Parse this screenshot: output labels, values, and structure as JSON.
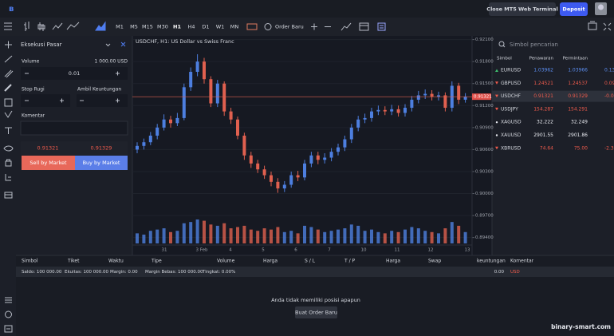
{
  "top_bar": {
    "close_button": "Close MT5 Web Terminal",
    "deposit_button": "Deposit"
  },
  "toolbar": {
    "timeframes": [
      "M1",
      "M5",
      "M15",
      "M30",
      "H1",
      "H4",
      "D1",
      "W1",
      "MN"
    ],
    "active_timeframe": "H1",
    "order_button": "Order Baru"
  },
  "order_panel": {
    "mode": "Eksekusi Pasar",
    "volume_label": "Volume",
    "volume_amount": "1 000.00 USD",
    "volume": "0.01",
    "stop_loss_label": "Stop Rugi",
    "take_profit_label": "Ambil Keuntungan",
    "comment_label": "Komentar",
    "bid": "0.91321",
    "ask": "0.91329",
    "sell_button": "Sell by Market",
    "buy_button": "Buy by Market"
  },
  "chart": {
    "title": "USDCHF, H1: US Dollar vs Swiss Franc",
    "ylim": [
      0.8932,
      0.9215
    ],
    "price_ticks": [
      {
        "value": 0.921,
        "label": "0.92100"
      },
      {
        "value": 0.918,
        "label": "0.91800"
      },
      {
        "value": 0.915,
        "label": "0.91500"
      },
      {
        "value": 0.912,
        "label": "0.91200"
      },
      {
        "value": 0.909,
        "label": "0.90900"
      },
      {
        "value": 0.906,
        "label": "0.90600"
      },
      {
        "value": 0.903,
        "label": "0.90300"
      },
      {
        "value": 0.9,
        "label": "0.90000"
      },
      {
        "value": 0.897,
        "label": "0.89700"
      },
      {
        "value": 0.894,
        "label": "0.89400"
      }
    ],
    "current_price": {
      "value": 0.91321,
      "label": "0.91321"
    },
    "x_labels": [
      "31",
      "3 Feb",
      "4",
      "5",
      "6",
      "7",
      "10",
      "11",
      "12",
      "13"
    ],
    "candles": [
      [
        0.906,
        0.907,
        0.9055,
        0.9065
      ],
      [
        0.9065,
        0.9075,
        0.906,
        0.907
      ],
      [
        0.907,
        0.9084,
        0.9066,
        0.9079
      ],
      [
        0.9079,
        0.9095,
        0.9074,
        0.909
      ],
      [
        0.909,
        0.9108,
        0.9086,
        0.9101
      ],
      [
        0.9101,
        0.9106,
        0.909,
        0.9096
      ],
      [
        0.9096,
        0.911,
        0.9092,
        0.9103
      ],
      [
        0.9103,
        0.915,
        0.91,
        0.9145
      ],
      [
        0.9145,
        0.9172,
        0.914,
        0.9166
      ],
      [
        0.9166,
        0.919,
        0.916,
        0.918
      ],
      [
        0.918,
        0.9185,
        0.915,
        0.9156
      ],
      [
        0.9156,
        0.916,
        0.9118,
        0.9123
      ],
      [
        0.9123,
        0.9155,
        0.9118,
        0.915
      ],
      [
        0.915,
        0.9153,
        0.9106,
        0.9112
      ],
      [
        0.9112,
        0.9117,
        0.9095,
        0.9101
      ],
      [
        0.9101,
        0.9105,
        0.9074,
        0.9079
      ],
      [
        0.9079,
        0.9083,
        0.9046,
        0.9052
      ],
      [
        0.9052,
        0.9057,
        0.9035,
        0.9041
      ],
      [
        0.9041,
        0.9046,
        0.9028,
        0.9033
      ],
      [
        0.9033,
        0.9038,
        0.902,
        0.9025
      ],
      [
        0.9025,
        0.903,
        0.901,
        0.9016
      ],
      [
        0.9016,
        0.9021,
        0.9001,
        0.9007
      ],
      [
        0.9007,
        0.9017,
        0.9002,
        0.9012
      ],
      [
        0.9012,
        0.903,
        0.9008,
        0.9025
      ],
      [
        0.9025,
        0.9031,
        0.9017,
        0.9022
      ],
      [
        0.9022,
        0.9046,
        0.9018,
        0.9041
      ],
      [
        0.9041,
        0.9057,
        0.9036,
        0.9052
      ],
      [
        0.9052,
        0.9057,
        0.904,
        0.9046
      ],
      [
        0.9046,
        0.9055,
        0.9041,
        0.9049
      ],
      [
        0.9049,
        0.9062,
        0.9044,
        0.9057
      ],
      [
        0.9057,
        0.9068,
        0.9052,
        0.9063
      ],
      [
        0.9063,
        0.9079,
        0.9058,
        0.9074
      ],
      [
        0.9074,
        0.9095,
        0.9069,
        0.909
      ],
      [
        0.909,
        0.9106,
        0.9085,
        0.9101
      ],
      [
        0.9101,
        0.9109,
        0.9096,
        0.9103
      ],
      [
        0.9103,
        0.9117,
        0.9098,
        0.9112
      ],
      [
        0.9112,
        0.912,
        0.9107,
        0.9114
      ],
      [
        0.9114,
        0.9119,
        0.9107,
        0.9112
      ],
      [
        0.9112,
        0.9121,
        0.9107,
        0.9115
      ],
      [
        0.9115,
        0.912,
        0.9105,
        0.911
      ],
      [
        0.911,
        0.9122,
        0.9105,
        0.9117
      ],
      [
        0.9117,
        0.9133,
        0.9112,
        0.9128
      ],
      [
        0.9128,
        0.914,
        0.9123,
        0.9134
      ],
      [
        0.9134,
        0.9142,
        0.9129,
        0.9136
      ],
      [
        0.9136,
        0.9141,
        0.9127,
        0.9132
      ],
      [
        0.9132,
        0.9139,
        0.9127,
        0.9134
      ],
      [
        0.9134,
        0.9138,
        0.9112,
        0.9117
      ],
      [
        0.9117,
        0.9153,
        0.9112,
        0.9147
      ],
      [
        0.9147,
        0.9151,
        0.9122,
        0.9128
      ],
      [
        0.9128,
        0.9137,
        0.9124,
        0.91321
      ]
    ],
    "volumes": [
      40,
      35,
      50,
      55,
      60,
      45,
      50,
      80,
      85,
      95,
      90,
      75,
      70,
      80,
      60,
      65,
      70,
      55,
      50,
      60,
      55,
      65,
      45,
      50,
      40,
      70,
      65,
      55,
      45,
      50,
      55,
      60,
      75,
      70,
      50,
      55,
      45,
      40,
      50,
      45,
      55,
      65,
      60,
      50,
      45,
      40,
      60,
      85,
      70,
      45
    ]
  },
  "market_watch": {
    "search_placeholder": "Simbol pencarian",
    "columns": [
      "Simbol",
      "Penawaran",
      "Permintaan"
    ],
    "rows": [
      {
        "symbol": "EURUSD",
        "bid": "1.03962",
        "ask": "1.03966",
        "change": "0.13",
        "tick": "up"
      },
      {
        "symbol": "GBPUSD",
        "bid": "1.24521",
        "ask": "1.24537",
        "change": "0.09",
        "tick": "down"
      },
      {
        "symbol": "USDCHF",
        "bid": "0.91321",
        "ask": "0.91329",
        "change": "-0.04",
        "tick": "down",
        "selected": true
      },
      {
        "symbol": "USDJPY",
        "bid": "154.287",
        "ask": "154.291",
        "tick": "down"
      },
      {
        "symbol": "XAGUSD",
        "bid": "32.222",
        "ask": "32.249",
        "tick": "flat"
      },
      {
        "symbol": "XAUUSD",
        "bid": "2901.55",
        "ask": "2901.86",
        "tick": "flat"
      },
      {
        "symbol": "XBRUSD",
        "bid": "74.64",
        "ask": "75.00",
        "change": "-2.39",
        "tick": "down"
      }
    ]
  },
  "trade_panel": {
    "columns": [
      "Simbol",
      "Tiket",
      "Waktu",
      "Tipe",
      "Volume",
      "Harga",
      "S / L",
      "T / P",
      "Harga",
      "Swap",
      "keuntungan",
      "Komentar"
    ],
    "summary": [
      "Saldo: 100 000.00",
      "Ekuitas: 100 000.00",
      "Margin: 0.00",
      "Margin Bebas: 100 000.00",
      "Tingkat: 0.00%"
    ],
    "profit": "0.00",
    "currency": "USD",
    "empty_message": "Anda tidak memiliki posisi apapun",
    "new_order_button": "Buat Order Baru"
  },
  "watermark": "binary-smart.com"
}
